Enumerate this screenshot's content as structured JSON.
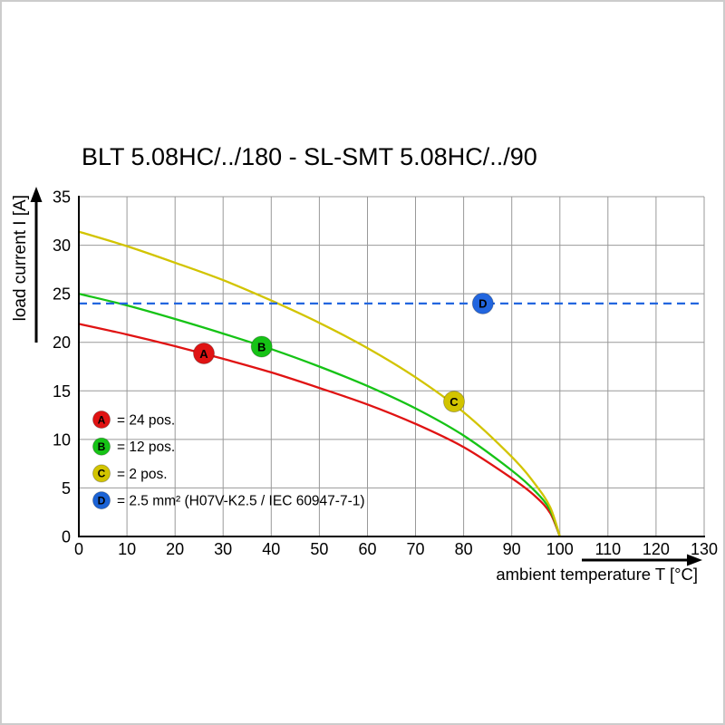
{
  "title": "BLT 5.08HC/../180 - SL-SMT 5.08HC/../90",
  "chart_data": {
    "type": "line",
    "title": "BLT 5.08HC/../180 - SL-SMT 5.08HC/../90",
    "xlabel": "ambient temperature T [°C]",
    "ylabel": "load current I [A]",
    "xlim": [
      0,
      130
    ],
    "ylim": [
      0,
      35
    ],
    "xticks": [
      0,
      10,
      20,
      30,
      40,
      50,
      60,
      70,
      80,
      90,
      100,
      110,
      120,
      130
    ],
    "yticks": [
      0,
      5,
      10,
      15,
      20,
      25,
      30,
      35
    ],
    "grid": true,
    "grid_color": "#999999",
    "axis_color": "#000000",
    "legend_position": "lower-left-inside",
    "series": [
      {
        "id": "A",
        "name": "24 pos.",
        "color": "#e01313",
        "dash": false,
        "x": [
          0,
          10,
          20,
          30,
          40,
          50,
          60,
          70,
          80,
          90,
          95,
          98,
          100
        ],
        "y": [
          21.9,
          20.8,
          19.6,
          18.3,
          16.9,
          15.3,
          13.6,
          11.6,
          9.2,
          6.0,
          4.1,
          2.4,
          0
        ],
        "marker": {
          "x": 26,
          "y": 18.85
        }
      },
      {
        "id": "B",
        "name": "12 pos.",
        "color": "#16c316",
        "dash": false,
        "x": [
          0,
          10,
          20,
          30,
          40,
          50,
          60,
          70,
          80,
          90,
          95,
          98,
          100
        ],
        "y": [
          25.0,
          23.8,
          22.4,
          20.9,
          19.3,
          17.5,
          15.5,
          13.2,
          10.4,
          6.8,
          4.6,
          2.7,
          0
        ],
        "marker": {
          "x": 38,
          "y": 19.55
        }
      },
      {
        "id": "C",
        "name": "2 pos.",
        "color": "#d2c400",
        "dash": false,
        "x": [
          0,
          10,
          20,
          30,
          40,
          50,
          60,
          70,
          80,
          90,
          95,
          98,
          100
        ],
        "y": [
          31.4,
          29.9,
          28.2,
          26.4,
          24.3,
          22.0,
          19.4,
          16.4,
          12.8,
          8.2,
          5.3,
          3.0,
          0
        ],
        "marker": {
          "x": 78,
          "y": 13.9
        }
      },
      {
        "id": "D",
        "name": "2.5 mm² (H07V-K2.5 / IEC 60947-7-1)",
        "color": "#2266df",
        "dash": true,
        "x": [
          0,
          130
        ],
        "y": [
          24,
          24
        ],
        "marker": {
          "x": 84,
          "y": 24
        }
      }
    ],
    "legend": [
      {
        "id": "A",
        "label": "= 24 pos.",
        "color": "#e01313"
      },
      {
        "id": "B",
        "label": "= 12 pos.",
        "color": "#16c316"
      },
      {
        "id": "C",
        "label": "= 2 pos.",
        "color": "#d2c400"
      },
      {
        "id": "D",
        "label": "= 2.5 mm² (H07V-K2.5 / IEC 60947-7-1)",
        "color": "#1b63d6"
      }
    ]
  }
}
